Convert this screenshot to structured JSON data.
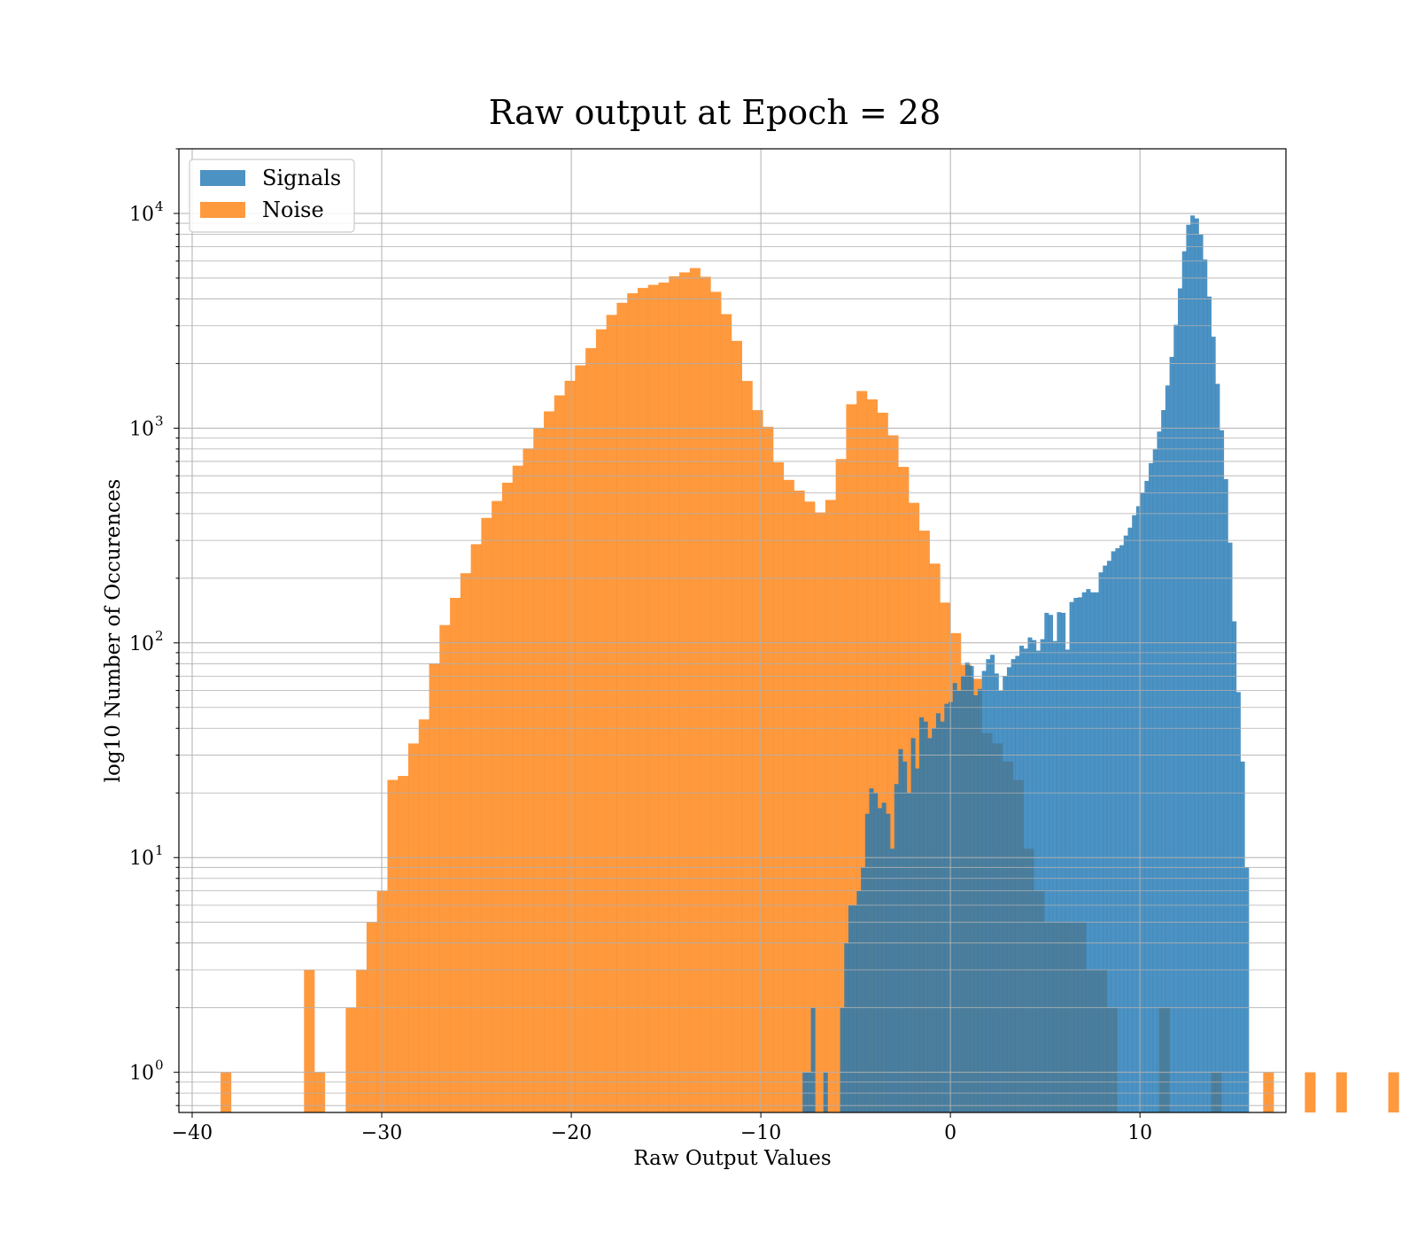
{
  "chart_data": {
    "type": "bar",
    "title": "Raw output at Epoch = 28",
    "xlabel": "Raw Output Values",
    "ylabel": "log10 Number of Occurences",
    "xlim": [
      -40.7,
      17.7
    ],
    "ylim": [
      0.65,
      20000
    ],
    "yscale": "log",
    "grid": true,
    "legend_placement": "top-left",
    "x_ticks": [
      {
        "v": -40,
        "label": "−40"
      },
      {
        "v": -30,
        "label": "−30"
      },
      {
        "v": -20,
        "label": "−20"
      },
      {
        "v": -10,
        "label": "−10"
      },
      {
        "v": 0,
        "label": "0"
      },
      {
        "v": 10,
        "label": "10"
      }
    ],
    "y_ticks": [
      {
        "v": 1,
        "base": "10",
        "exp": "0"
      },
      {
        "v": 10,
        "base": "10",
        "exp": "1"
      },
      {
        "v": 100,
        "base": "10",
        "exp": "2"
      },
      {
        "v": 1000,
        "base": "10",
        "exp": "3"
      },
      {
        "v": 10000,
        "base": "10",
        "exp": "4"
      }
    ],
    "series": [
      {
        "name": "Noise",
        "color": "#ff7f0e",
        "bin_start": -38.5,
        "bin_width": 0.55,
        "values": [
          1,
          0,
          0,
          0,
          0,
          0,
          0,
          0,
          3,
          1,
          0,
          0,
          2,
          3,
          5,
          7,
          23,
          24,
          34,
          44,
          80,
          121,
          162,
          211,
          288,
          382,
          458,
          557,
          669,
          805,
          1001,
          1197,
          1421,
          1662,
          1960,
          2358,
          2886,
          3369,
          3835,
          4248,
          4497,
          4650,
          4763,
          5095,
          5315,
          5565,
          5070,
          4314,
          3396,
          2550,
          1659,
          1213,
          1015,
          693,
          574,
          512,
          455,
          405,
          463,
          718,
          1292,
          1489,
          1362,
          1180,
          926,
          660,
          449,
          333,
          234,
          154,
          111,
          79,
          68,
          38,
          34,
          28,
          23,
          11,
          7,
          5,
          5,
          5,
          5,
          3,
          3,
          2,
          0,
          0,
          0,
          0,
          2,
          0,
          0,
          0,
          0,
          1,
          0,
          0,
          0,
          0,
          1,
          0,
          0,
          0,
          1,
          0,
          0,
          1,
          0,
          0,
          0,
          0,
          1
        ]
      },
      {
        "name": "Signals",
        "color": "#1f77b4",
        "bin_start": -7.8,
        "bin_width": 0.22,
        "values": [
          1,
          1,
          2,
          0,
          0,
          1,
          0,
          0,
          0,
          2,
          4,
          6,
          6,
          7,
          9,
          16,
          21,
          20,
          17,
          18,
          16,
          11,
          22,
          32,
          28,
          20,
          36,
          26,
          45,
          43,
          36,
          40,
          47,
          43,
          52,
          53,
          65,
          60,
          70,
          81,
          78,
          57,
          61,
          74,
          84,
          88,
          72,
          60,
          70,
          77,
          84,
          87,
          97,
          94,
          106,
          103,
          92,
          104,
          138,
          135,
          102,
          139,
          138,
          93,
          155,
          162,
          163,
          172,
          178,
          172,
          172,
          213,
          229,
          241,
          267,
          276,
          285,
          316,
          344,
          393,
          433,
          500,
          568,
          687,
          797,
          964,
          1214,
          1580,
          2147,
          3032,
          4479,
          6664,
          8860,
          9780,
          9480,
          7970,
          6103,
          4100,
          2667,
          1608,
          978,
          579,
          293,
          126,
          59,
          28,
          9
        ]
      }
    ],
    "legend": [
      {
        "name": "Signals",
        "color": "#1f77b4"
      },
      {
        "name": "Noise",
        "color": "#ff7f0e"
      }
    ]
  }
}
